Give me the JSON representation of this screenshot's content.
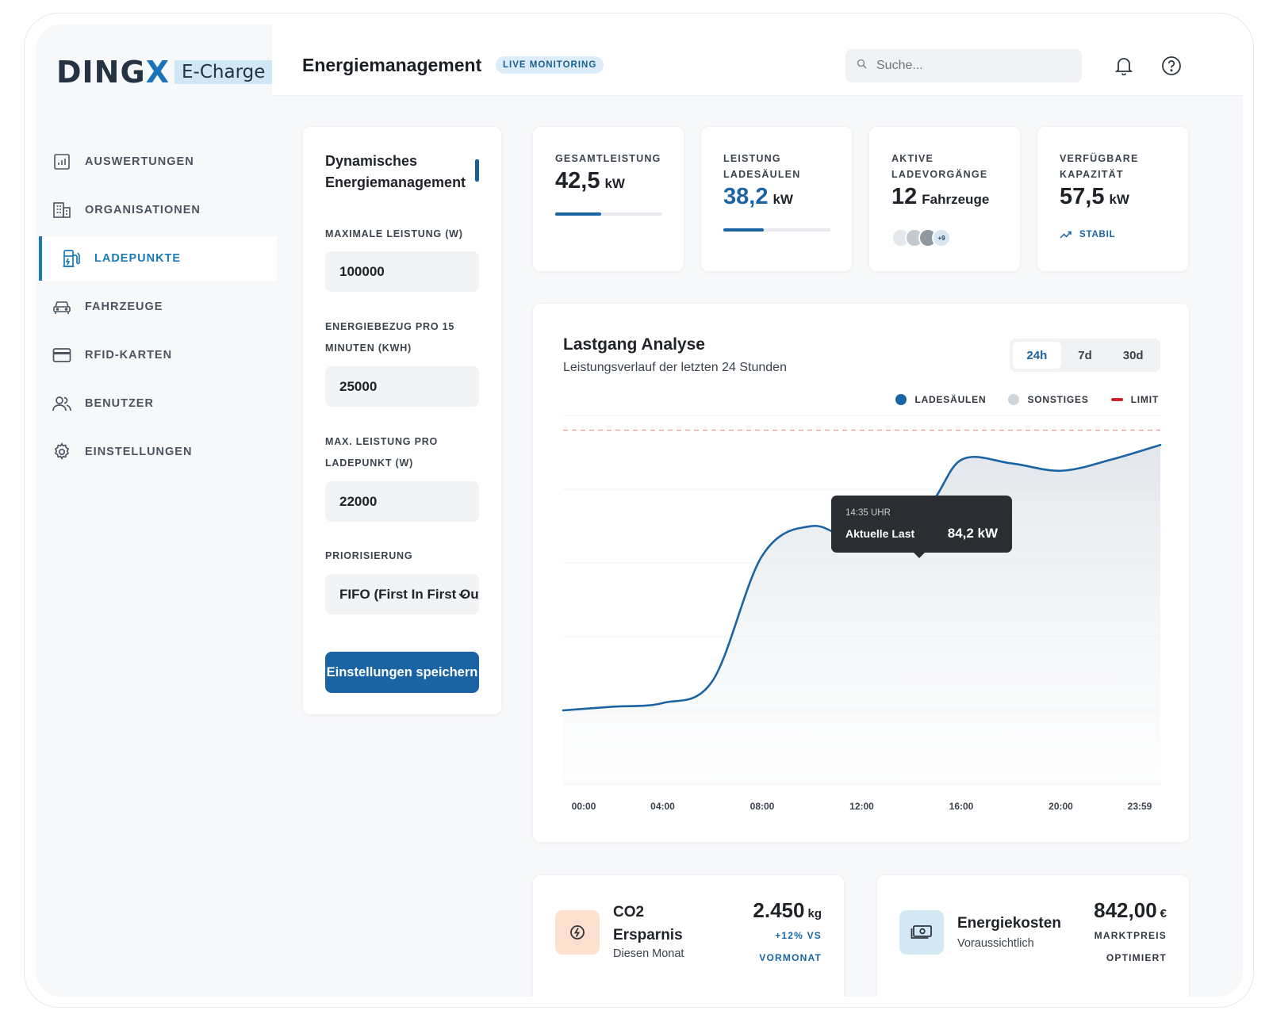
{
  "brand": {
    "word": "DING",
    "x": "X",
    "tag": "E-Charge"
  },
  "sidebar": {
    "items": [
      {
        "label": "AUSWERTUNGEN",
        "icon": "bar-chart-icon",
        "active": false
      },
      {
        "label": "ORGANISATIONEN",
        "icon": "building-icon",
        "active": false
      },
      {
        "label": "LADEPUNKTE",
        "icon": "charging-station-icon",
        "active": true
      },
      {
        "label": "FAHRZEUGE",
        "icon": "car-icon",
        "active": false
      },
      {
        "label": "RFID-KARTEN",
        "icon": "card-icon",
        "active": false
      },
      {
        "label": "BENUTZER",
        "icon": "users-icon",
        "active": false
      },
      {
        "label": "EINSTELLUNGEN",
        "icon": "gear-icon",
        "active": false
      }
    ]
  },
  "header": {
    "title": "Energiemanagement",
    "badge": "LIVE MONITORING",
    "search_placeholder": "Suche..."
  },
  "form": {
    "title_line1": "Dynamisches",
    "title_line2": "Energiemanagement",
    "max_power_label": "MAXIMALE LEISTUNG (W)",
    "max_power_value": "100000",
    "energy_label_line1": "ENERGIEBEZUG PRO 15",
    "energy_label_line2": "MINUTEN (KWH)",
    "energy_value": "25000",
    "max_point_label_line1": "MAX. LEISTUNG PRO",
    "max_point_label_line2": "LADEPUNKT (W)",
    "max_point_value": "22000",
    "priority_label": "PRIORISIERUNG",
    "priority_value": "FIFO (First In First Out)",
    "save_label": "Einstellungen speichern"
  },
  "kpis": {
    "total": {
      "label": "GESAMTLEISTUNG",
      "value": "42,5",
      "unit": "kW",
      "progress": 0.43
    },
    "stations": {
      "label_line1": "LEISTUNG",
      "label_line2": "LADESÄULEN",
      "value": "38,2",
      "unit": "kW",
      "progress": 0.38
    },
    "active": {
      "label_line1": "AKTIVE",
      "label_line2": "LADEVORGÄNGE",
      "value": "12",
      "unit": "Fahrzeuge",
      "more": "+9"
    },
    "capacity": {
      "label_line1": "VERFÜGBARE",
      "label_line2": "KAPAZITÄT",
      "value": "57,5",
      "unit": "kW",
      "trend": "STABIL"
    }
  },
  "chart": {
    "title": "Lastgang Analyse",
    "subtitle": "Leistungsverlauf der letzten 24 Stunden",
    "ranges": [
      "24h",
      "7d",
      "30d"
    ],
    "selected_range": "24h",
    "legend": [
      "LADESÄULEN",
      "SONSTIGES",
      "LIMIT"
    ],
    "tooltip": {
      "time": "14:35 UHR",
      "label": "Aktuelle Last",
      "value": "84,2 kW"
    },
    "colors": {
      "primary": "#1a64a3",
      "secondary": "#cfd5db",
      "limit": "#c62828"
    }
  },
  "chart_data": {
    "type": "area",
    "x": [
      "00:00",
      "02:00",
      "04:00",
      "06:00",
      "08:00",
      "10:00",
      "12:00",
      "14:35",
      "16:00",
      "18:00",
      "20:00",
      "22:00",
      "23:59"
    ],
    "xticks": [
      "00:00",
      "04:00",
      "08:00",
      "12:00",
      "16:00",
      "20:00",
      "23:59"
    ],
    "series": [
      {
        "name": "LADESÄULEN",
        "values": [
          20,
          21,
          22,
          28,
          62,
          70,
          66,
          75,
          88,
          87,
          85,
          88,
          92
        ]
      }
    ],
    "limit": 96,
    "ylim": [
      0,
      100
    ],
    "grid": true,
    "legend_position": "top-right"
  },
  "co2": {
    "title_line1": "CO2",
    "title_line2": "Ersparnis",
    "sub": "Diesen Monat",
    "value": "2.450",
    "unit": "kg",
    "note_line1": "+12% VS",
    "note_line2": "VORMONAT"
  },
  "cost": {
    "title": "Energiekosten",
    "sub": "Voraussichtlich",
    "value": "842,00",
    "unit": "€",
    "note_line1": "MARKTPREIS",
    "note_line2": "OPTIMIERT"
  }
}
